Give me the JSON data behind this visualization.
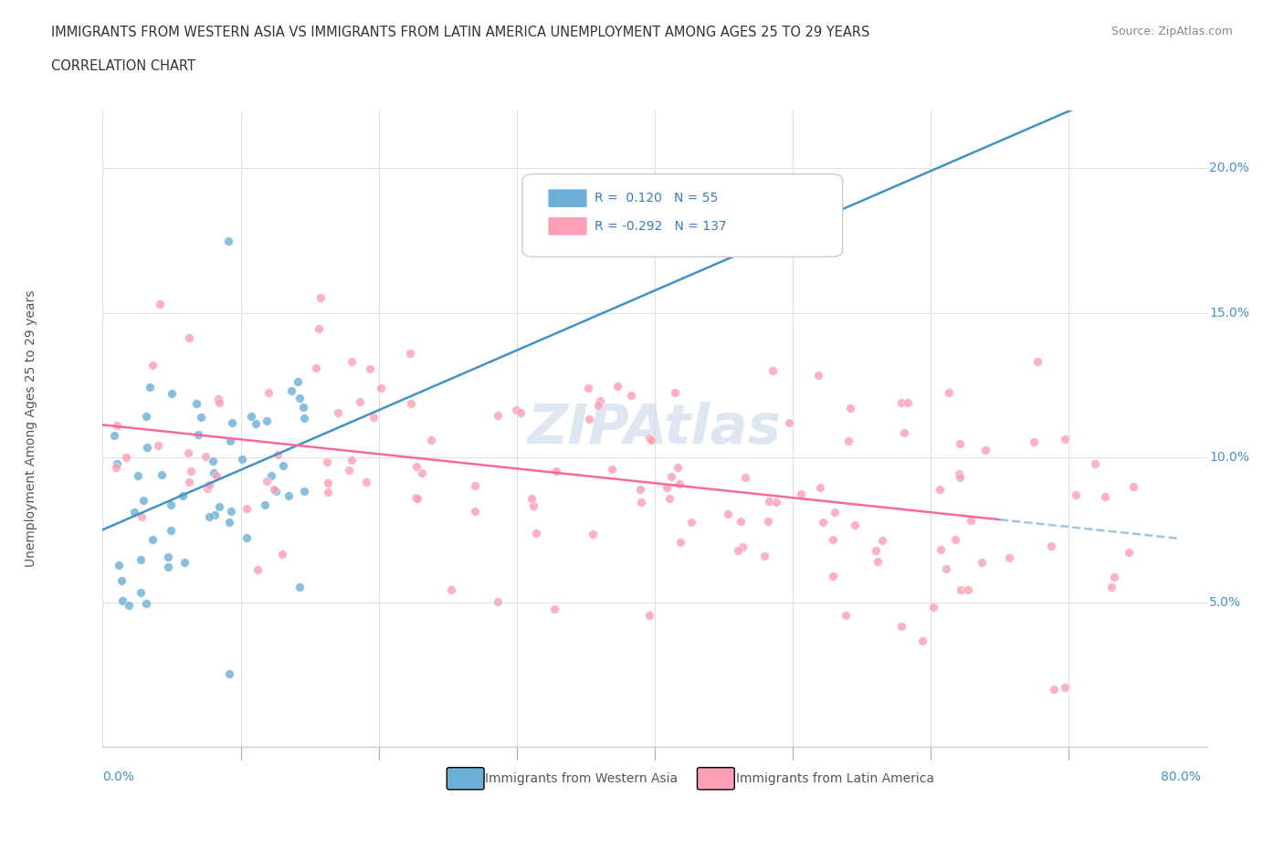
{
  "title_line1": "IMMIGRANTS FROM WESTERN ASIA VS IMMIGRANTS FROM LATIN AMERICA UNEMPLOYMENT AMONG AGES 25 TO 29 YEARS",
  "title_line2": "CORRELATION CHART",
  "source_text": "Source: ZipAtlas.com",
  "ylabel": "Unemployment Among Ages 25 to 29 years",
  "legend_bottom": [
    "Immigrants from Western Asia",
    "Immigrants from Latin America"
  ],
  "legend_box": {
    "R1": "0.120",
    "N1": "55",
    "R2": "-0.292",
    "N2": "137"
  },
  "ytick_labels": [
    "5.0%",
    "10.0%",
    "15.0%",
    "20.0%"
  ],
  "ytick_values": [
    0.05,
    0.1,
    0.15,
    0.2
  ],
  "xlim": [
    0.0,
    0.8
  ],
  "ylim": [
    0.0,
    0.22
  ],
  "blue_color": "#6baed6",
  "pink_color": "#fa9fb5",
  "blue_line_color": "#4292c6",
  "pink_line_color": "#f768a1",
  "dashed_line_color": "#a0c4e8",
  "watermark_text": "ZIPAtlas",
  "watermark_color": "#c8d8e8",
  "background_color": "#ffffff",
  "grid_color": "#e0e0e0"
}
